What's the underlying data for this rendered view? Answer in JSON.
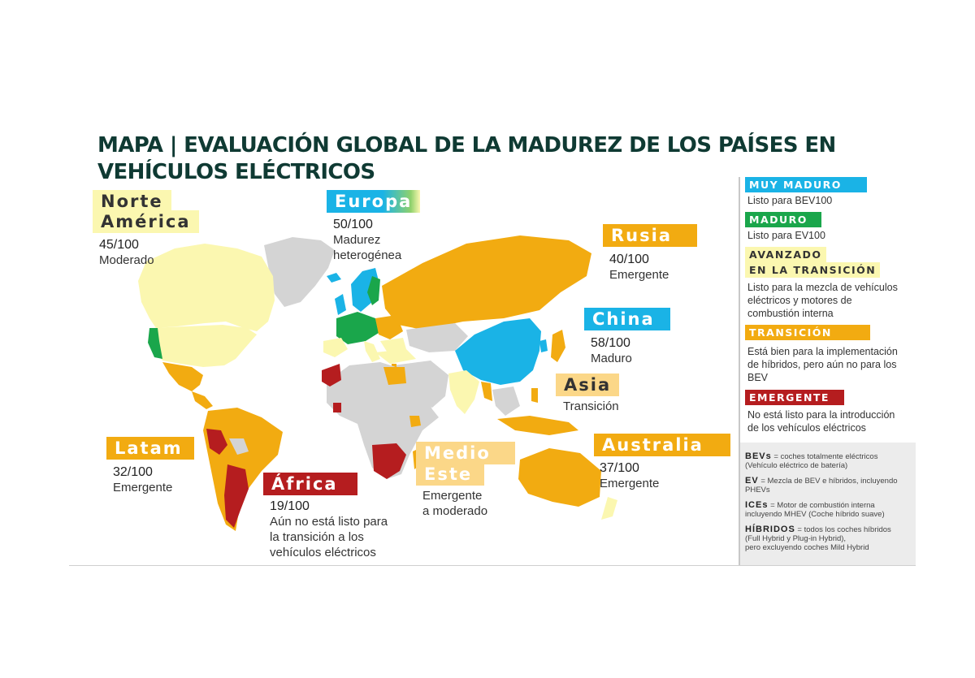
{
  "title": "MAPA | EVALUACIÓN GLOBAL DE LA MADUREZ DE LOS PAÍSES EN VEHÍCULOS ELÉCTRICOS",
  "colors": {
    "muy_maduro": "#1ab3e6",
    "maduro": "#1aa64b",
    "avanzado": "#fbf7b0",
    "transicion": "#f2ab11",
    "emergente": "#b51d1f",
    "sin_datos": "#d4d4d4"
  },
  "regions": {
    "norte_america": {
      "name_line1": "Norte",
      "name_line2": "América",
      "score": "45/100",
      "status": "Moderado"
    },
    "europa": {
      "name": "Europa",
      "score": "50/100",
      "status_line1": "Madurez",
      "status_line2": "heterogénea"
    },
    "rusia": {
      "name": "Rusia",
      "score": "40/100",
      "status": "Emergente"
    },
    "china": {
      "name": "China",
      "score": "58/100",
      "status": "Maduro"
    },
    "asia": {
      "name": "Asia",
      "status": "Transición"
    },
    "latam": {
      "name": "Latam",
      "score": "32/100",
      "status": "Emergente"
    },
    "africa": {
      "name": "África",
      "score": "19/100",
      "status_line1": "Aún no está listo para",
      "status_line2": "la transición a los",
      "status_line3": "vehículos eléctricos"
    },
    "medio_este": {
      "name_line1": "Medio",
      "name_line2": "Este",
      "status_line1": "Emergente",
      "status_line2": "a moderado"
    },
    "australia": {
      "name": "Australia",
      "score": "37/100",
      "status": "Emergente"
    }
  },
  "legend": {
    "muy_maduro": {
      "label": "Muy maduro",
      "desc": "Listo para BEV100"
    },
    "maduro": {
      "label": "Maduro",
      "desc": "Listo para EV100"
    },
    "avanzado": {
      "label_line1": "Avanzado",
      "label_line2": "en la transición",
      "desc_line1": "Listo para la mezcla de vehículos",
      "desc_line2": "eléctricos y motores de",
      "desc_line3": "combustión interna"
    },
    "transicion": {
      "label": "Transición",
      "desc_line1": "Está bien para la implementación",
      "desc_line2": "de híbridos, pero aún no para los",
      "desc_line3": "BEV"
    },
    "emergente": {
      "label": "Emergente",
      "desc_line1": "No está listo para la introducción",
      "desc_line2": "de los vehículos eléctricos"
    }
  },
  "glossary": {
    "bevs": {
      "term": "BEVs",
      "def1": " = coches totalmente eléctricos",
      "def2": "(Vehículo eléctrico de batería)"
    },
    "ev": {
      "term": "EV",
      "def1": " = Mezcla de BEV e híbridos, incluyendo",
      "def2": "PHEVs"
    },
    "ices": {
      "term": "ICEs",
      "def1": " = Motor de combustión interna",
      "def2": "incluyendo MHEV (Coche híbrido suave)"
    },
    "hibridos": {
      "term": "Híbridos",
      "def1": " = todos los coches híbridos",
      "def2": "(Full Hybrid y Plug-in Hybrid),",
      "def3": "pero excluyendo coches Mild Hybrid"
    }
  }
}
